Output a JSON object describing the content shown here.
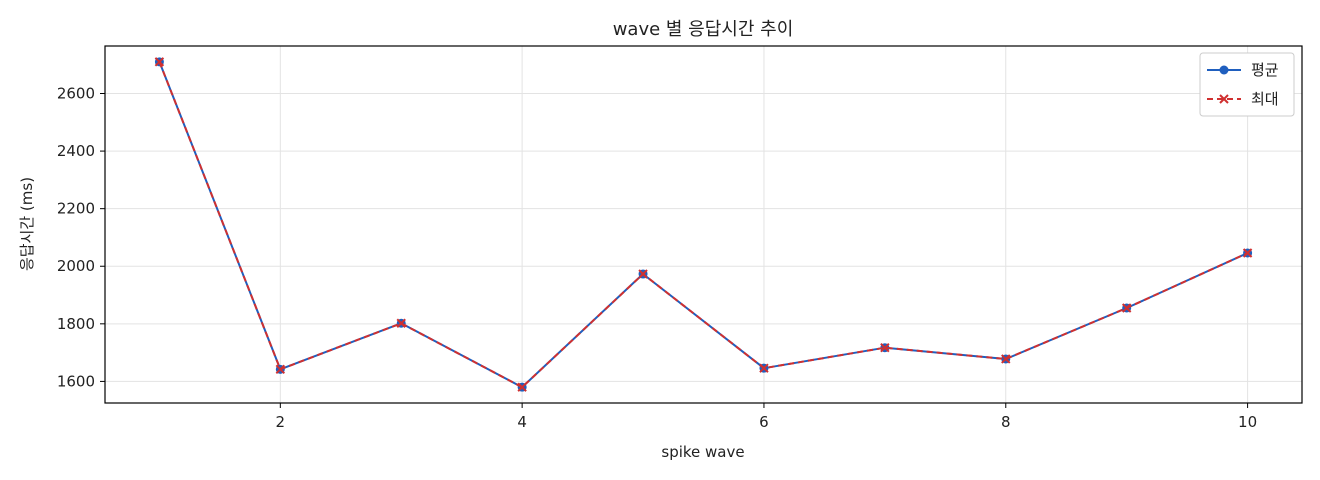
{
  "chart_data": {
    "type": "line",
    "title": "wave 별 응답시간 추이",
    "xlabel": "spike wave",
    "ylabel": "응답시간 (ms)",
    "xlim": [
      0.55,
      10.45
    ],
    "ylim": [
      1525,
      2765
    ],
    "x_ticks": [
      2,
      4,
      6,
      8,
      10
    ],
    "y_ticks": [
      1600,
      1800,
      2000,
      2200,
      2400,
      2600
    ],
    "grid": true,
    "legend_position": "top-right",
    "x": [
      1,
      2,
      3,
      4,
      5,
      6,
      7,
      8,
      9,
      10
    ],
    "series": [
      {
        "name": "평균",
        "color": "#1f5fbf",
        "marker": "circle",
        "line_style": "solid",
        "values": [
          2710,
          1642,
          1802,
          1580,
          1973,
          1646,
          1717,
          1678,
          1855,
          2046
        ]
      },
      {
        "name": "최대",
        "color": "#d03030",
        "marker": "x",
        "line_style": "dashed",
        "values": [
          2710,
          1642,
          1802,
          1580,
          1973,
          1646,
          1717,
          1678,
          1855,
          2046
        ]
      }
    ]
  }
}
